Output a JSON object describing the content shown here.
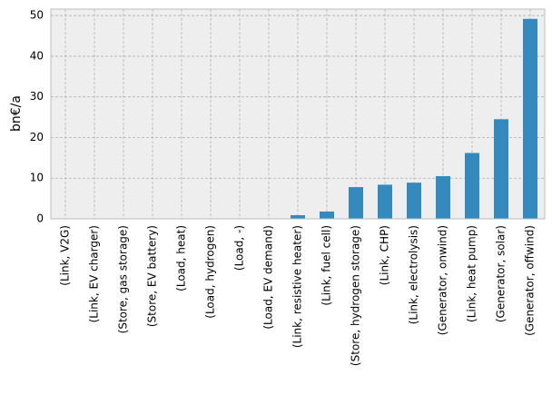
{
  "chart_data": {
    "type": "bar",
    "ylabel": "bn€/a",
    "categories": [
      "(Link, V2G)",
      "(Link, EV charger)",
      "(Store, gas storage)",
      "(Store, EV battery)",
      "(Load, heat)",
      "(Load, hydrogen)",
      "(Load, -)",
      "(Load, EV demand)",
      "(Link, resistive heater)",
      "(Link, fuel cell)",
      "(Store, hydrogen storage)",
      "(Link, CHP)",
      "(Link, electrolysis)",
      "(Generator, onwind)",
      "(Link, heat pump)",
      "(Generator, solar)",
      "(Generator, offwind)"
    ],
    "values": [
      0,
      0,
      0,
      0,
      0,
      0,
      0,
      0,
      0.9,
      1.8,
      7.8,
      8.4,
      8.9,
      10.5,
      16.2,
      24.5,
      49.2
    ],
    "color": "#348abd",
    "ylim": [
      0,
      51.6
    ],
    "yticks": [
      0,
      10,
      20,
      30,
      40,
      50
    ],
    "grid": true
  }
}
